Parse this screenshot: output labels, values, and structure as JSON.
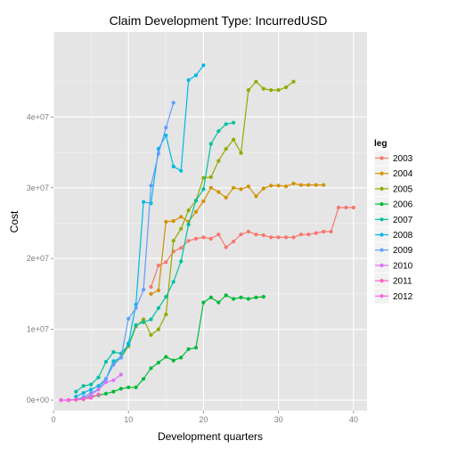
{
  "chart_data": {
    "type": "line",
    "title": "Claim Development  Type: IncurredUSD",
    "xlabel": "Development quarters",
    "ylabel": "Cost",
    "xlim": [
      0,
      41.8
    ],
    "ylim": [
      -1500000,
      52000000
    ],
    "x_ticks": [
      0,
      10,
      20,
      30,
      40
    ],
    "x_tick_labels": [
      "0",
      "10",
      "20",
      "30",
      "40"
    ],
    "y_ticks": [
      0,
      10000000,
      20000000,
      30000000,
      40000000
    ],
    "y_tick_labels": [
      "0e+00",
      "1e+07",
      "2e+07",
      "3e+07",
      "4e+07"
    ],
    "grid": true,
    "legend": {
      "title": "leg",
      "position": "right"
    },
    "series": [
      {
        "name": "2003",
        "color": "#F8766D",
        "x": [
          13,
          14,
          15,
          16,
          17,
          18,
          19,
          20,
          21,
          22,
          23,
          24,
          25,
          26,
          27,
          28,
          29,
          30,
          31,
          32,
          33,
          34,
          35,
          36,
          37,
          38,
          39,
          40
        ],
        "y": [
          16000000,
          19000000,
          19500000,
          21000000,
          21500000,
          22500000,
          22800000,
          23000000,
          22800000,
          23400000,
          21600000,
          22400000,
          23400000,
          23800000,
          23400000,
          23300000,
          23000000,
          23000000,
          23000000,
          23000000,
          23400000,
          23400000,
          23600000,
          23800000,
          23800000,
          27200000,
          27200000,
          27200000
        ]
      },
      {
        "name": "2004",
        "color": "#D39200",
        "x": [
          13,
          14,
          15,
          16,
          17,
          18,
          19,
          20,
          21,
          22,
          23,
          24,
          25,
          26,
          27,
          28,
          29,
          30,
          31,
          32,
          33,
          34,
          35,
          36
        ],
        "y": [
          15000000,
          15500000,
          25200000,
          25300000,
          25900000,
          25200000,
          26600000,
          28100000,
          30000000,
          29400000,
          28600000,
          30000000,
          29800000,
          30200000,
          28800000,
          29900000,
          30300000,
          30300000,
          30200000,
          30600000,
          30400000,
          30400000,
          30400000,
          30400000
        ]
      },
      {
        "name": "2005",
        "color": "#93AA00",
        "x": [
          8,
          9,
          10,
          11,
          12,
          13,
          14,
          15,
          16,
          17,
          18,
          19,
          20,
          21,
          22,
          23,
          24,
          25,
          26,
          27,
          28,
          29,
          30,
          31,
          32
        ],
        "y": [
          5200000,
          6000000,
          7600000,
          10400000,
          11400000,
          9200000,
          10000000,
          12100000,
          22500000,
          24200000,
          26800000,
          28200000,
          31400000,
          31500000,
          33800000,
          35500000,
          36800000,
          34900000,
          43800000,
          45000000,
          44000000,
          43800000,
          43800000,
          44200000,
          45000000
        ]
      },
      {
        "name": "2006",
        "color": "#00BA38",
        "x": [
          2,
          3,
          4,
          5,
          6,
          7,
          8,
          9,
          10,
          11,
          12,
          13,
          14,
          15,
          16,
          17,
          18,
          19,
          20,
          21,
          22,
          23,
          24,
          25,
          26,
          27,
          28
        ],
        "y": [
          0,
          100000,
          300000,
          500000,
          700000,
          900000,
          1200000,
          1600000,
          1800000,
          1800000,
          3000000,
          4500000,
          5300000,
          6100000,
          5600000,
          6000000,
          7200000,
          7400000,
          13800000,
          14500000,
          13800000,
          14800000,
          14300000,
          14500000,
          14300000,
          14500000,
          14600000
        ]
      },
      {
        "name": "2007",
        "color": "#00C19F",
        "x": [
          3,
          4,
          5,
          6,
          7,
          8,
          9,
          10,
          11,
          12,
          13,
          14,
          15,
          16,
          17,
          18,
          19,
          20,
          21,
          22,
          23,
          24
        ],
        "y": [
          1200000,
          2000000,
          2200000,
          3200000,
          5400000,
          6800000,
          6600000,
          7800000,
          10600000,
          11000000,
          11400000,
          13000000,
          14600000,
          16700000,
          19600000,
          24800000,
          28200000,
          29800000,
          36200000,
          38000000,
          39000000,
          39200000
        ]
      },
      {
        "name": "2008",
        "color": "#00B9E3",
        "x": [
          3,
          4,
          5,
          6,
          7,
          8,
          9,
          10,
          11,
          12,
          13,
          14,
          15,
          16,
          17,
          18,
          19,
          20
        ],
        "y": [
          500000,
          1000000,
          1500000,
          2000000,
          3000000,
          5500000,
          6000000,
          8000000,
          13500000,
          28000000,
          27800000,
          35500000,
          37400000,
          33000000,
          32400000,
          45200000,
          45900000,
          47300000
        ]
      },
      {
        "name": "2009",
        "color": "#619CFF",
        "x": [
          2,
          3,
          4,
          5,
          6,
          7,
          8,
          9,
          10,
          11,
          12,
          13,
          14,
          15,
          16
        ],
        "y": [
          0,
          100000,
          400000,
          1000000,
          1500000,
          3000000,
          5000000,
          6000000,
          11500000,
          13000000,
          15600000,
          30300000,
          34800000,
          38500000,
          42000000
        ]
      },
      {
        "name": "2010",
        "color": "#DB72FB",
        "x": [
          2,
          3,
          4,
          5,
          6,
          7,
          8,
          9
        ],
        "y": [
          0,
          50000,
          200000,
          700000,
          1500000,
          2500000,
          2800000,
          3600000
        ]
      },
      {
        "name": "2011",
        "color": "#FF61C3",
        "x": [
          1,
          2,
          3,
          4,
          5,
          6
        ],
        "y": [
          0,
          0,
          30000,
          100000,
          300000,
          800000
        ]
      },
      {
        "name": "2012",
        "color": "#F564E3",
        "x": [
          1,
          2
        ],
        "y": [
          0,
          10000
        ]
      }
    ]
  }
}
